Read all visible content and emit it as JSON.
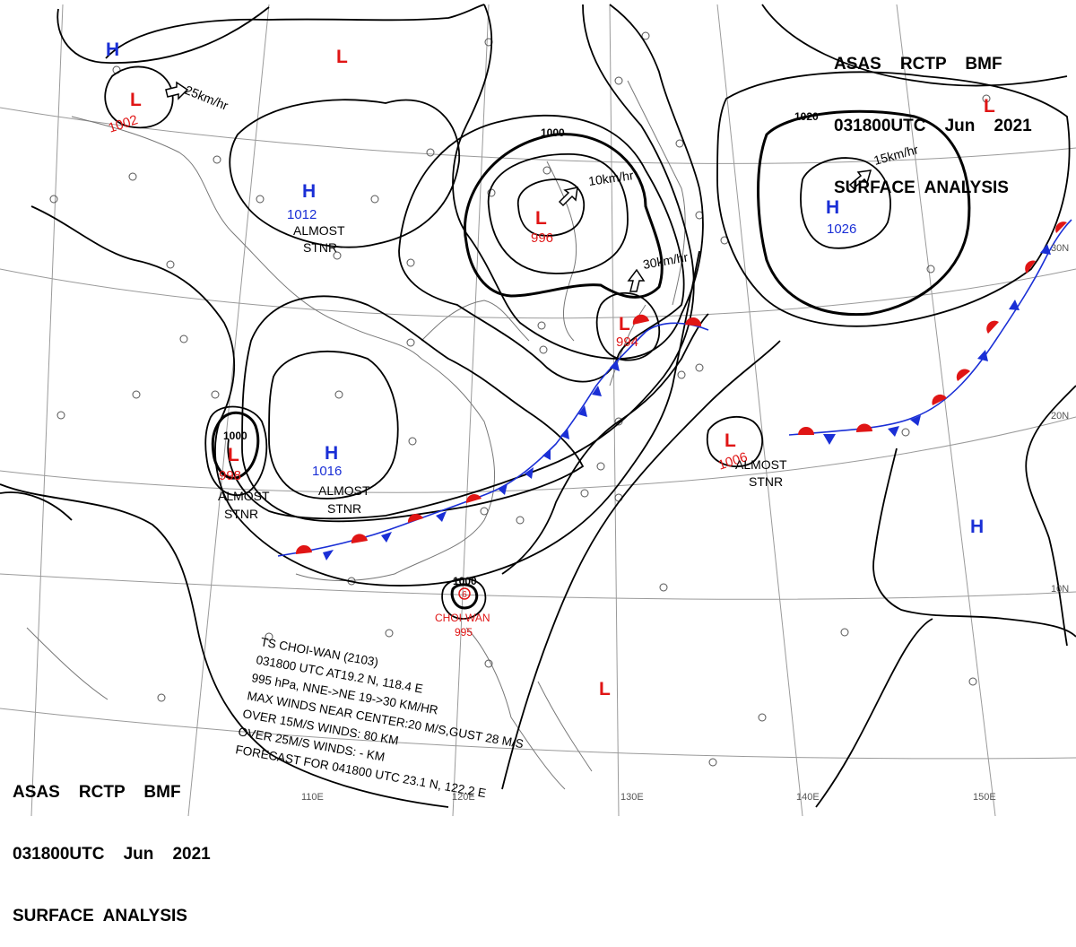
{
  "header": {
    "line1": "ASAS    RCTP    BMF",
    "line2": "031800UTC    Jun    2021",
    "line3": "SURFACE  ANALYSIS"
  },
  "pressure_centers": [
    {
      "type": "H",
      "value": ""
    },
    {
      "type": "L",
      "value": "1002"
    },
    {
      "type": "L",
      "value": ""
    },
    {
      "type": "H",
      "value": "1012"
    },
    {
      "type": "L",
      "value": "996"
    },
    {
      "type": "H",
      "value": "1026"
    },
    {
      "type": "L",
      "value": ""
    },
    {
      "type": "L",
      "value": "994"
    },
    {
      "type": "H",
      "value": "1016"
    },
    {
      "type": "L",
      "value": "998"
    },
    {
      "type": "L",
      "value": "1006"
    },
    {
      "type": "H",
      "value": ""
    },
    {
      "type": "L",
      "value": ""
    }
  ],
  "isobar_labels": [
    "1000",
    "1020",
    "1000",
    "1000"
  ],
  "motion_labels": [
    "25km/hr",
    "10km/hr",
    "15km/hr",
    "30km/hr"
  ],
  "stationary_labels": [
    {
      "line1": "ALMOST",
      "line2": "STNR"
    },
    {
      "line1": "ALMOST",
      "line2": "STNR"
    },
    {
      "line1": "ALMOST",
      "line2": "STNR"
    },
    {
      "line1": "ALMOST",
      "line2": "STNR"
    }
  ],
  "latitude_labels": [
    "30N",
    "20N",
    "10N"
  ],
  "longitude_labels": [
    "110E",
    "120E",
    "130E",
    "140E",
    "150E"
  ],
  "storm": {
    "name": "CHOI-WAN",
    "pressure": "995",
    "bulletin": [
      "TS  CHOI-WAN  (2103)",
      "031800 UTC  AT19.2 N, 118.4 E",
      "995 hPa, NNE->NE  19->30 KM/HR",
      "MAX WINDS NEAR CENTER:20 M/S,GUST 28 M/S",
      "OVER 15M/S WINDS: 80 KM",
      "OVER 25M/S WINDS: - KM",
      "FORECAST FOR 041800 UTC 23.1 N, 122.2 E"
    ]
  },
  "colors": {
    "high": "#1a2fd6",
    "low": "#e01515",
    "warm_front": "#e01515",
    "cold_front": "#1a2fd6",
    "line": "#000000",
    "grid": "#9a9a9a"
  }
}
